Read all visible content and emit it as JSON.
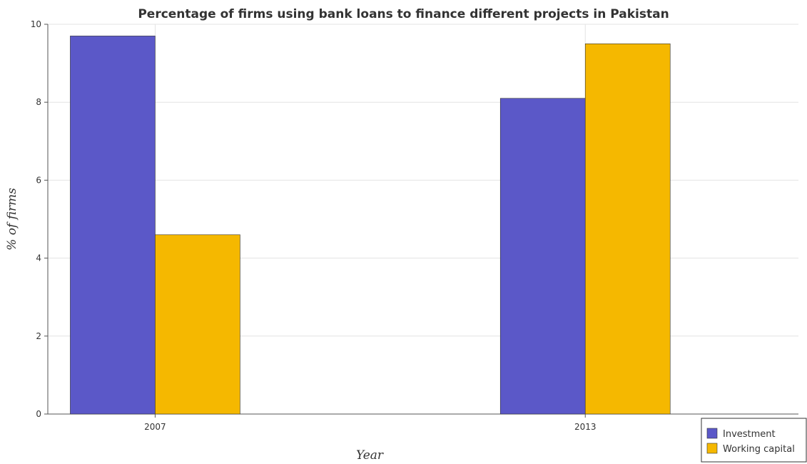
{
  "chart_data": {
    "type": "bar",
    "title": "Percentage of firms using bank loans to finance different projects in Pakistan",
    "xlabel": "Year",
    "ylabel": "% of firms",
    "categories": [
      "2007",
      "2013"
    ],
    "series": [
      {
        "name": "Investment",
        "values": [
          9.7,
          8.1
        ],
        "color": "#5b58c8"
      },
      {
        "name": "Working capital",
        "values": [
          4.6,
          9.5
        ],
        "color": "#f5b800"
      }
    ],
    "ylim": [
      0,
      10
    ],
    "yticks": [
      "0",
      "2",
      "4",
      "6",
      "8",
      "10"
    ],
    "grid": true,
    "legend_position": "bottom-right"
  }
}
